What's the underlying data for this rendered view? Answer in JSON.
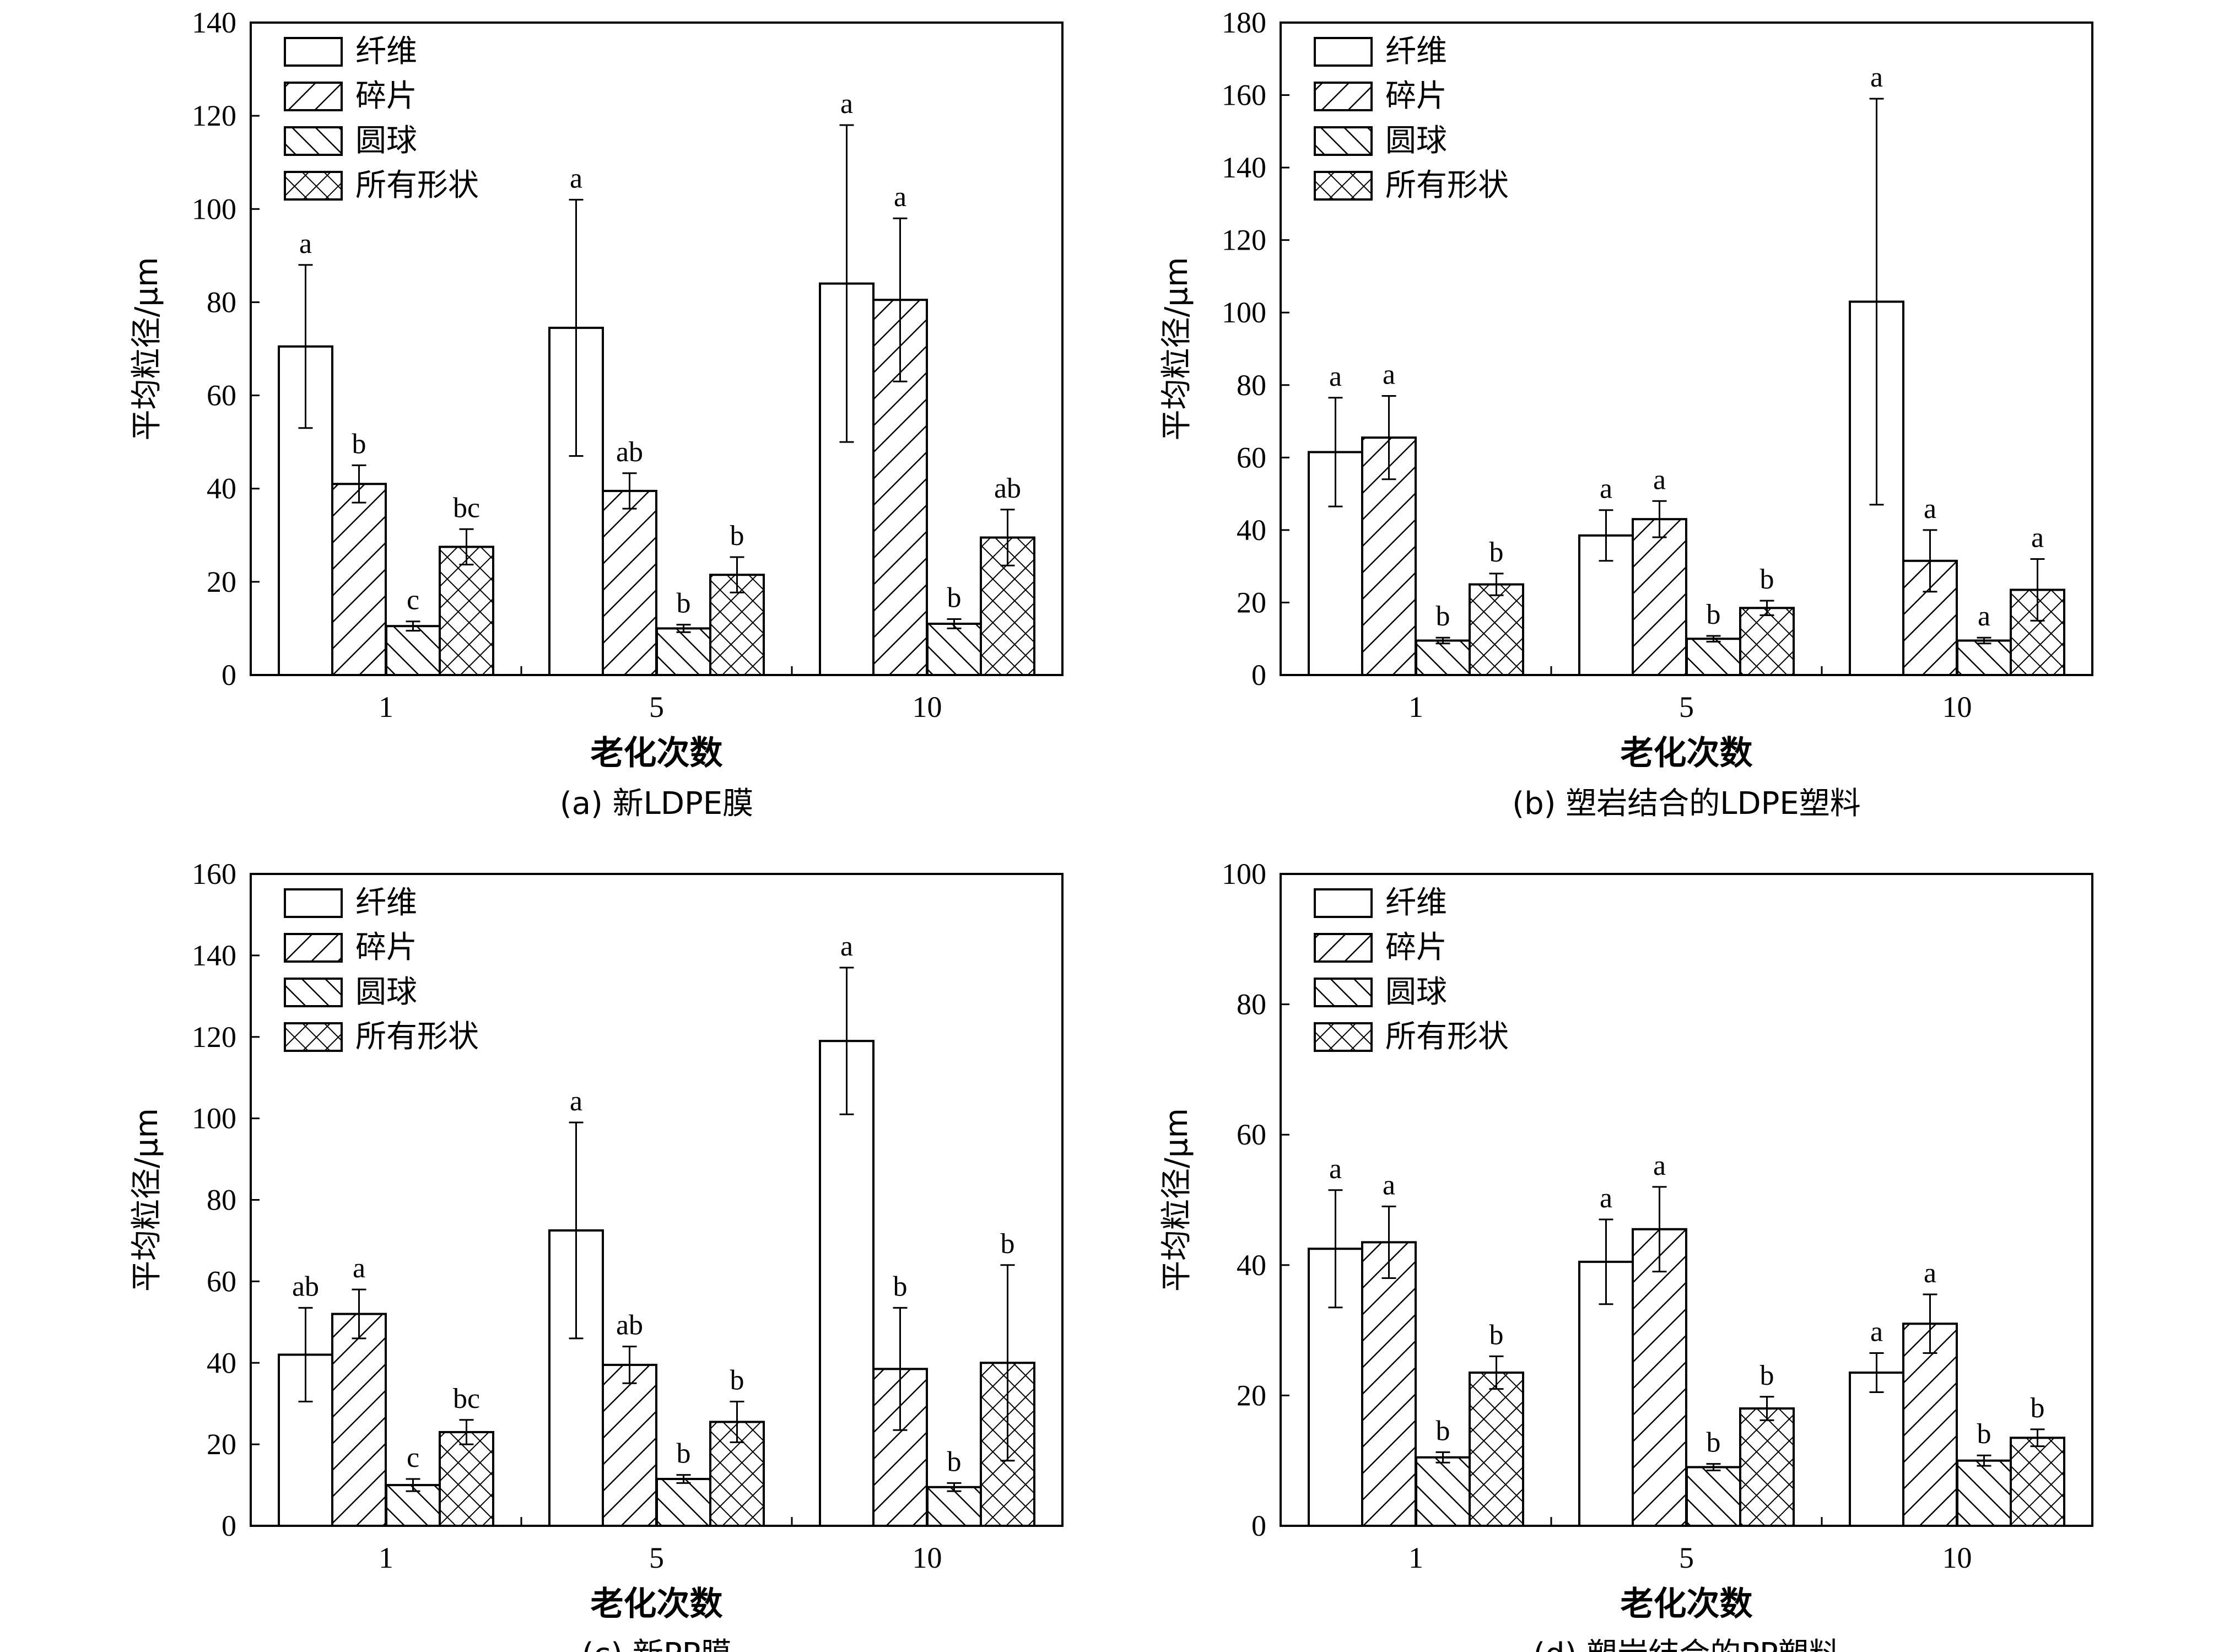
{
  "figure": {
    "legend_labels": [
      "纤维",
      "碎片",
      "圆球",
      "所有形状"
    ],
    "patterns": [
      "blank",
      "hatch-forward",
      "hatch-backward",
      "crosshatch"
    ]
  },
  "chart_data": [
    {
      "type": "bar",
      "caption": "(a) 新LDPE膜",
      "xlabel": "老化次数",
      "ylabel": "平均粒径/μm",
      "categories": [
        "1",
        "5",
        "10"
      ],
      "ylim": [
        0,
        140
      ],
      "yticks": [
        0,
        20,
        40,
        60,
        80,
        100,
        120,
        140
      ],
      "legend_position": "top-left",
      "series": [
        {
          "name": "纤维",
          "values": [
            70.5,
            74.5,
            84
          ],
          "errors": [
            17.5,
            27.5,
            34
          ],
          "labels": [
            "a",
            "a",
            "a"
          ]
        },
        {
          "name": "碎片",
          "values": [
            41,
            39.5,
            80.5
          ],
          "errors": [
            4,
            3.8,
            17.5
          ],
          "labels": [
            "b",
            "ab",
            "a"
          ]
        },
        {
          "name": "圆球",
          "values": [
            10.5,
            10,
            11
          ],
          "errors": [
            1,
            0.8,
            1
          ],
          "labels": [
            "c",
            "b",
            "b"
          ]
        },
        {
          "name": "所有形状",
          "values": [
            27.5,
            21.5,
            29.5
          ],
          "errors": [
            3.8,
            3.8,
            6
          ],
          "labels": [
            "bc",
            "b",
            "ab"
          ]
        }
      ]
    },
    {
      "type": "bar",
      "caption": "(b) 塑岩结合的LDPE塑料",
      "xlabel": "老化次数",
      "ylabel": "平均粒径/μm",
      "categories": [
        "1",
        "5",
        "10"
      ],
      "ylim": [
        0,
        180
      ],
      "yticks": [
        0,
        20,
        40,
        60,
        80,
        100,
        120,
        140,
        160,
        180
      ],
      "legend_position": "top-left",
      "series": [
        {
          "name": "纤维",
          "values": [
            61.5,
            38.5,
            103
          ],
          "errors": [
            15,
            7,
            56
          ],
          "labels": [
            "a",
            "a",
            "a"
          ]
        },
        {
          "name": "碎片",
          "values": [
            65.5,
            43,
            31.5
          ],
          "errors": [
            11.5,
            5,
            8.5
          ],
          "labels": [
            "a",
            "a",
            "a"
          ]
        },
        {
          "name": "圆球",
          "values": [
            9.5,
            10,
            9.5
          ],
          "errors": [
            0.8,
            0.8,
            0.8
          ],
          "labels": [
            "b",
            "b",
            "a"
          ]
        },
        {
          "name": "所有形状",
          "values": [
            25,
            18.5,
            23.5
          ],
          "errors": [
            3,
            2,
            8.5
          ],
          "labels": [
            "b",
            "b",
            "a"
          ]
        }
      ]
    },
    {
      "type": "bar",
      "caption": "(c) 新PP膜",
      "xlabel": "老化次数",
      "ylabel": "平均粒径/μm",
      "categories": [
        "1",
        "5",
        "10"
      ],
      "ylim": [
        0,
        160
      ],
      "yticks": [
        0,
        20,
        40,
        60,
        80,
        100,
        120,
        140,
        160
      ],
      "legend_position": "top-left",
      "series": [
        {
          "name": "纤维",
          "values": [
            42,
            72.5,
            119
          ],
          "errors": [
            11.5,
            26.5,
            18
          ],
          "labels": [
            "ab",
            "a",
            "a"
          ]
        },
        {
          "name": "碎片",
          "values": [
            52,
            39.5,
            38.5
          ],
          "errors": [
            6,
            4.5,
            15
          ],
          "labels": [
            "a",
            "ab",
            "b"
          ]
        },
        {
          "name": "圆球",
          "values": [
            10,
            11.5,
            9.5
          ],
          "errors": [
            1.5,
            1,
            1
          ],
          "labels": [
            "c",
            "b",
            "b"
          ]
        },
        {
          "name": "所有形状",
          "values": [
            23,
            25.5,
            40
          ],
          "errors": [
            3,
            5,
            24
          ],
          "labels": [
            "bc",
            "b",
            "b"
          ]
        }
      ]
    },
    {
      "type": "bar",
      "caption": "(d) 塑岩结合的PP塑料",
      "xlabel": "老化次数",
      "ylabel": "平均粒径/μm",
      "categories": [
        "1",
        "5",
        "10"
      ],
      "ylim": [
        0,
        100
      ],
      "yticks": [
        0,
        20,
        40,
        60,
        80,
        100
      ],
      "legend_position": "top-left",
      "series": [
        {
          "name": "纤维",
          "values": [
            42.5,
            40.5,
            23.5
          ],
          "errors": [
            9,
            6.5,
            3
          ],
          "labels": [
            "a",
            "a",
            "a"
          ]
        },
        {
          "name": "碎片",
          "values": [
            43.5,
            45.5,
            31
          ],
          "errors": [
            5.5,
            6.5,
            4.5
          ],
          "labels": [
            "a",
            "a",
            "a"
          ]
        },
        {
          "name": "圆球",
          "values": [
            10.5,
            9,
            10
          ],
          "errors": [
            0.8,
            0.5,
            0.8
          ],
          "labels": [
            "b",
            "b",
            "b"
          ]
        },
        {
          "name": "所有形状",
          "values": [
            23.5,
            18,
            13.5
          ],
          "errors": [
            2.5,
            1.8,
            1.3
          ],
          "labels": [
            "b",
            "b",
            "b"
          ]
        }
      ]
    }
  ]
}
